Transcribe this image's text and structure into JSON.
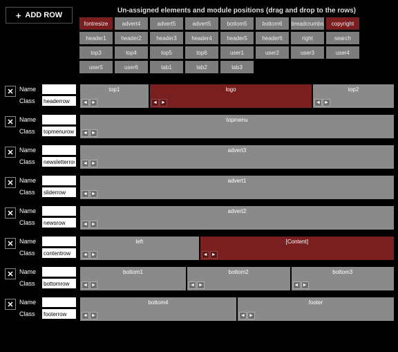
{
  "colors": {
    "bg": "#000000",
    "chip_bg": "#7d7d7d",
    "chip_hl_bg": "#7a1f1f",
    "cell_bg": "#8a8a8a",
    "cell_hl_bg": "#7a1f1f",
    "input_bg": "#ffffff",
    "text": "#ffffff"
  },
  "add_row_label": "ADD ROW",
  "pool_title": "Un-assigned elements and module positions (drag and drop to the rows)",
  "pool": [
    {
      "label": "fontresize",
      "hl": true
    },
    {
      "label": "advert4",
      "hl": false
    },
    {
      "label": "advert5",
      "hl": false
    },
    {
      "label": "advert5",
      "hl": false
    },
    {
      "label": "bottom5",
      "hl": false
    },
    {
      "label": "bottom6",
      "hl": false
    },
    {
      "label": "breadcrumbs",
      "hl": false
    },
    {
      "label": "copyright",
      "hl": true
    },
    {
      "label": "header1",
      "hl": false
    },
    {
      "label": "header2",
      "hl": false
    },
    {
      "label": "header3",
      "hl": false
    },
    {
      "label": "header4",
      "hl": false
    },
    {
      "label": "header5",
      "hl": false
    },
    {
      "label": "header6",
      "hl": false
    },
    {
      "label": "right",
      "hl": false
    },
    {
      "label": "search",
      "hl": false
    },
    {
      "label": "top3",
      "hl": false
    },
    {
      "label": "top4",
      "hl": false
    },
    {
      "label": "top5",
      "hl": false
    },
    {
      "label": "top6",
      "hl": false
    },
    {
      "label": "user1",
      "hl": false
    },
    {
      "label": "user2",
      "hl": false
    },
    {
      "label": "user3",
      "hl": false
    },
    {
      "label": "user4",
      "hl": false
    },
    {
      "label": "user5",
      "hl": false
    },
    {
      "label": "user6",
      "hl": false
    },
    {
      "label": "tab1",
      "hl": false
    },
    {
      "label": "tab2",
      "hl": false
    },
    {
      "label": "tab3",
      "hl": false
    }
  ],
  "meta_labels": {
    "name": "Name",
    "class": "Class"
  },
  "rows": [
    {
      "name": "",
      "class": "headerrow",
      "cells": [
        {
          "label": "top1",
          "flex": 22,
          "hl": false
        },
        {
          "label": "logo",
          "flex": 52,
          "hl": true
        },
        {
          "label": "top2",
          "flex": 26,
          "hl": false
        }
      ]
    },
    {
      "name": "",
      "class": "topmenurow",
      "cells": [
        {
          "label": "topmenu",
          "flex": 100,
          "hl": false
        }
      ]
    },
    {
      "name": "",
      "class": "newsletterrow",
      "cells": [
        {
          "label": "advert3",
          "flex": 100,
          "hl": false
        }
      ]
    },
    {
      "name": "",
      "class": "sliderrow",
      "cells": [
        {
          "label": "advert1",
          "flex": 100,
          "hl": false
        }
      ]
    },
    {
      "name": "",
      "class": "newsrow",
      "cells": [
        {
          "label": "advert2",
          "flex": 100,
          "hl": false
        }
      ]
    },
    {
      "name": "",
      "class": "contentrow",
      "cells": [
        {
          "label": "left",
          "flex": 38,
          "hl": false
        },
        {
          "label": "[Content]",
          "flex": 62,
          "hl": true
        }
      ]
    },
    {
      "name": "",
      "class": "bottomrow",
      "cells": [
        {
          "label": "bottom1",
          "flex": 34,
          "hl": false
        },
        {
          "label": "bottom2",
          "flex": 33,
          "hl": false
        },
        {
          "label": "bottom3",
          "flex": 33,
          "hl": false
        }
      ]
    },
    {
      "name": "",
      "class": "footerrow",
      "cells": [
        {
          "label": "bottom4",
          "flex": 50,
          "hl": false
        },
        {
          "label": "footer",
          "flex": 50,
          "hl": false
        }
      ]
    }
  ]
}
